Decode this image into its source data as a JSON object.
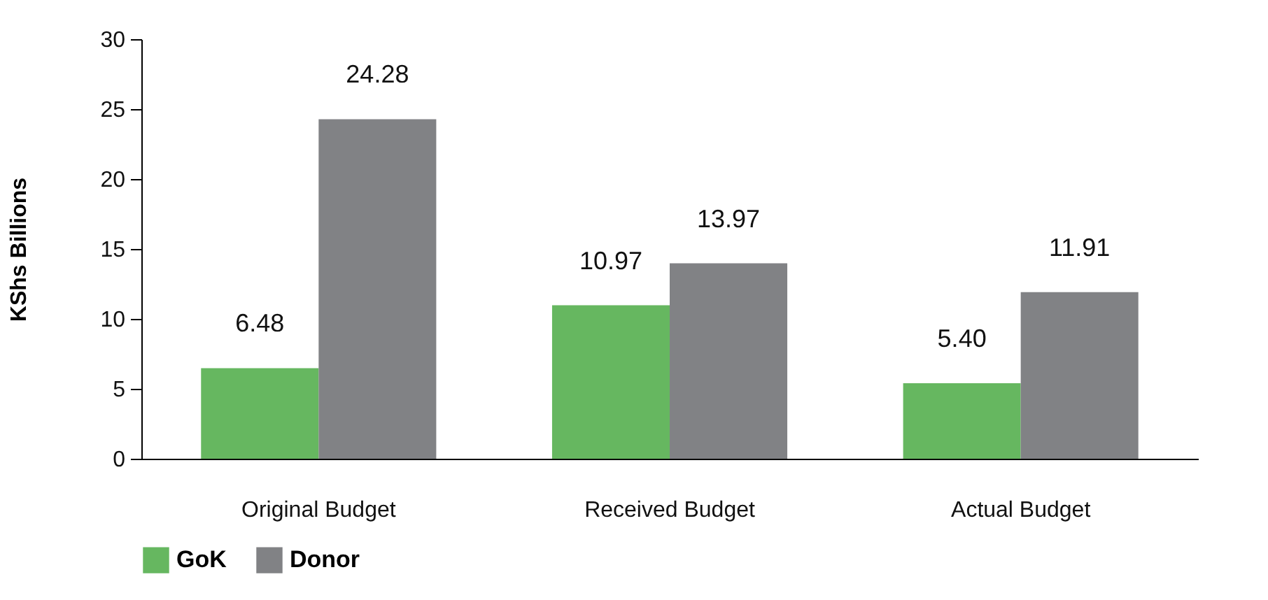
{
  "chart_data": {
    "type": "bar",
    "ylabel": "KShs Billions",
    "categories": [
      "Original Budget",
      "Received Budget",
      "Actual Budget"
    ],
    "series": [
      {
        "name": "GoK",
        "color": "#66b760",
        "values": [
          6.48,
          10.97,
          5.4
        ],
        "value_labels": [
          "6.48",
          "10.97",
          "5.40"
        ]
      },
      {
        "name": "Donor",
        "color": "#818285",
        "values": [
          24.28,
          13.97,
          11.91
        ],
        "value_labels": [
          "24.28",
          "13.97",
          "11.91"
        ]
      }
    ],
    "ylim": [
      0,
      30
    ],
    "yticks": [
      0,
      5,
      10,
      15,
      20,
      25,
      30
    ],
    "grid": false,
    "legend": "bottom"
  }
}
